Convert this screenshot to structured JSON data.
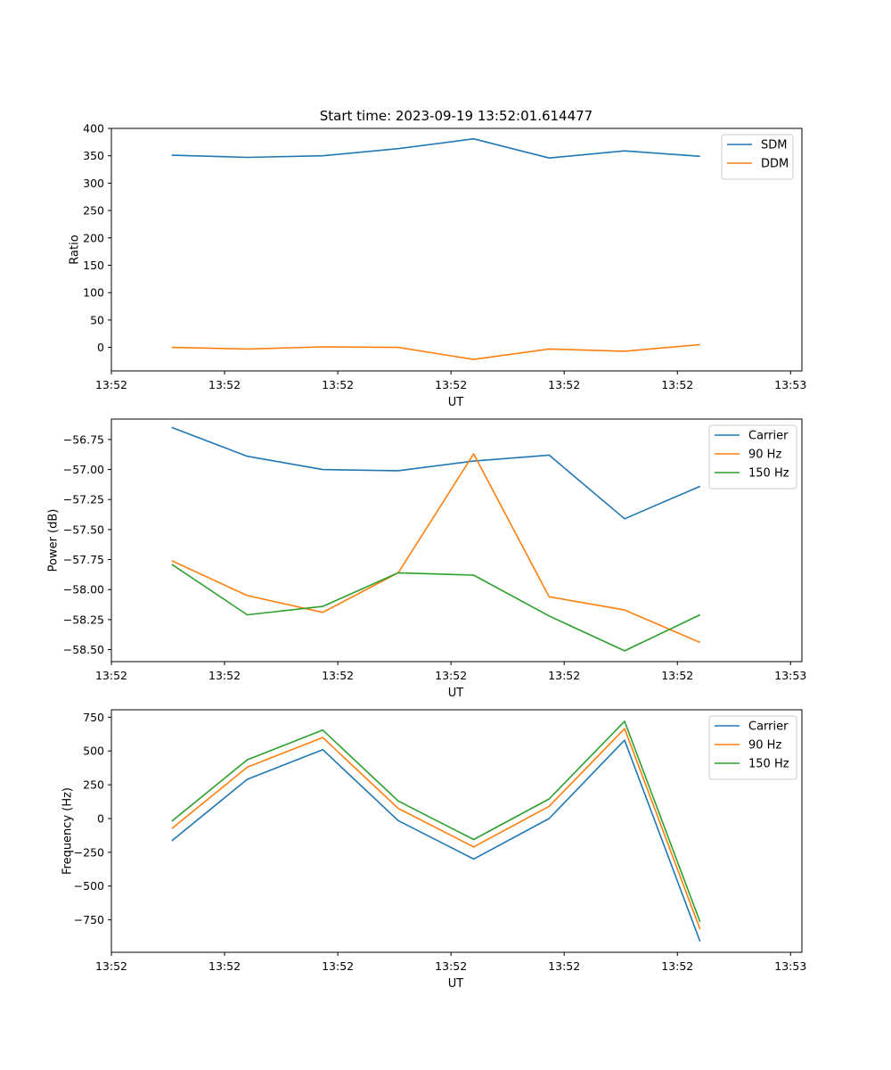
{
  "figure": {
    "title": "Start time: 2023-09-19 13:52:01.614477"
  },
  "chart_data": [
    {
      "type": "line",
      "title": "Start time: 2023-09-19 13:52:01.614477",
      "xlabel": "UT",
      "ylabel": "Ratio",
      "x": [
        1,
        2,
        3,
        4,
        5,
        6,
        7,
        8
      ],
      "xlim": [
        0.2,
        9.35
      ],
      "ylim": [
        -43,
        400
      ],
      "xticks": [
        {
          "pos": 0.2,
          "label": "13:52"
        },
        {
          "pos": 1.7,
          "label": "13:52"
        },
        {
          "pos": 3.2,
          "label": "13:52"
        },
        {
          "pos": 4.7,
          "label": "13:52"
        },
        {
          "pos": 6.2,
          "label": "13:52"
        },
        {
          "pos": 7.7,
          "label": "13:52"
        },
        {
          "pos": 9.2,
          "label": "13:53"
        }
      ],
      "yticks": [
        {
          "pos": 400,
          "label": "400"
        },
        {
          "pos": 350,
          "label": "350"
        },
        {
          "pos": 300,
          "label": "300"
        },
        {
          "pos": 250,
          "label": "250"
        },
        {
          "pos": 200,
          "label": "200"
        },
        {
          "pos": 150,
          "label": "150"
        },
        {
          "pos": 100,
          "label": "100"
        },
        {
          "pos": 50,
          "label": "50"
        },
        {
          "pos": 0,
          "label": "0"
        }
      ],
      "legend_position": "top-right",
      "series": [
        {
          "name": "SDM",
          "color": "#1f77b4",
          "values": [
            351,
            347,
            350,
            363,
            381,
            346,
            359,
            349
          ]
        },
        {
          "name": "DDM",
          "color": "#ff7f0e",
          "values": [
            0,
            -3,
            1,
            0,
            -22,
            -3,
            -7,
            5
          ]
        }
      ]
    },
    {
      "type": "line",
      "xlabel": "UT",
      "ylabel": "Power (dB)",
      "x": [
        1,
        2,
        3,
        4,
        5,
        6,
        7,
        8
      ],
      "xlim": [
        0.2,
        9.35
      ],
      "ylim": [
        -58.6,
        -56.58
      ],
      "xticks": [
        {
          "pos": 0.2,
          "label": "13:52"
        },
        {
          "pos": 1.7,
          "label": "13:52"
        },
        {
          "pos": 3.2,
          "label": "13:52"
        },
        {
          "pos": 4.7,
          "label": "13:52"
        },
        {
          "pos": 6.2,
          "label": "13:52"
        },
        {
          "pos": 7.7,
          "label": "13:52"
        },
        {
          "pos": 9.2,
          "label": "13:53"
        }
      ],
      "yticks": [
        {
          "pos": -56.75,
          "label": "−56.75"
        },
        {
          "pos": -57.0,
          "label": "−57.00"
        },
        {
          "pos": -57.25,
          "label": "−57.25"
        },
        {
          "pos": -57.5,
          "label": "−57.50"
        },
        {
          "pos": -57.75,
          "label": "−57.75"
        },
        {
          "pos": -58.0,
          "label": "−58.00"
        },
        {
          "pos": -58.25,
          "label": "−58.25"
        },
        {
          "pos": -58.5,
          "label": "−58.50"
        }
      ],
      "legend_position": "top-right",
      "series": [
        {
          "name": "Carrier",
          "color": "#1f77b4",
          "values": [
            -56.65,
            -56.89,
            -57.0,
            -57.01,
            -56.93,
            -56.88,
            -57.41,
            -57.14
          ]
        },
        {
          "name": "90 Hz",
          "color": "#ff7f0e",
          "values": [
            -57.76,
            -58.05,
            -58.19,
            -57.86,
            -56.87,
            -58.06,
            -58.17,
            -58.44
          ]
        },
        {
          "name": "150 Hz",
          "color": "#2ca02c",
          "values": [
            -57.79,
            -58.21,
            -58.14,
            -57.86,
            -57.88,
            -58.22,
            -58.51,
            -58.21
          ]
        }
      ]
    },
    {
      "type": "line",
      "xlabel": "UT",
      "ylabel": "Frequency (Hz)",
      "x": [
        1,
        2,
        3,
        4,
        5,
        6,
        7,
        8
      ],
      "xlim": [
        0.2,
        9.35
      ],
      "ylim": [
        -990,
        805
      ],
      "xticks": [
        {
          "pos": 0.2,
          "label": "13:52"
        },
        {
          "pos": 1.7,
          "label": "13:52"
        },
        {
          "pos": 3.2,
          "label": "13:52"
        },
        {
          "pos": 4.7,
          "label": "13:52"
        },
        {
          "pos": 6.2,
          "label": "13:52"
        },
        {
          "pos": 7.7,
          "label": "13:52"
        },
        {
          "pos": 9.2,
          "label": "13:53"
        }
      ],
      "yticks": [
        {
          "pos": 750,
          "label": "750"
        },
        {
          "pos": 500,
          "label": "500"
        },
        {
          "pos": 250,
          "label": "250"
        },
        {
          "pos": 0,
          "label": "0"
        },
        {
          "pos": -250,
          "label": "−250"
        },
        {
          "pos": -500,
          "label": "−500"
        },
        {
          "pos": -750,
          "label": "−750"
        }
      ],
      "legend_position": "top-right",
      "series": [
        {
          "name": "Carrier",
          "color": "#1f77b4",
          "values": [
            -165,
            290,
            510,
            -15,
            -300,
            0,
            580,
            -910
          ]
        },
        {
          "name": "90 Hz",
          "color": "#ff7f0e",
          "values": [
            -75,
            380,
            600,
            75,
            -210,
            90,
            665,
            -820
          ]
        },
        {
          "name": "150 Hz",
          "color": "#2ca02c",
          "values": [
            -20,
            435,
            655,
            130,
            -155,
            145,
            720,
            -765
          ]
        }
      ]
    }
  ]
}
